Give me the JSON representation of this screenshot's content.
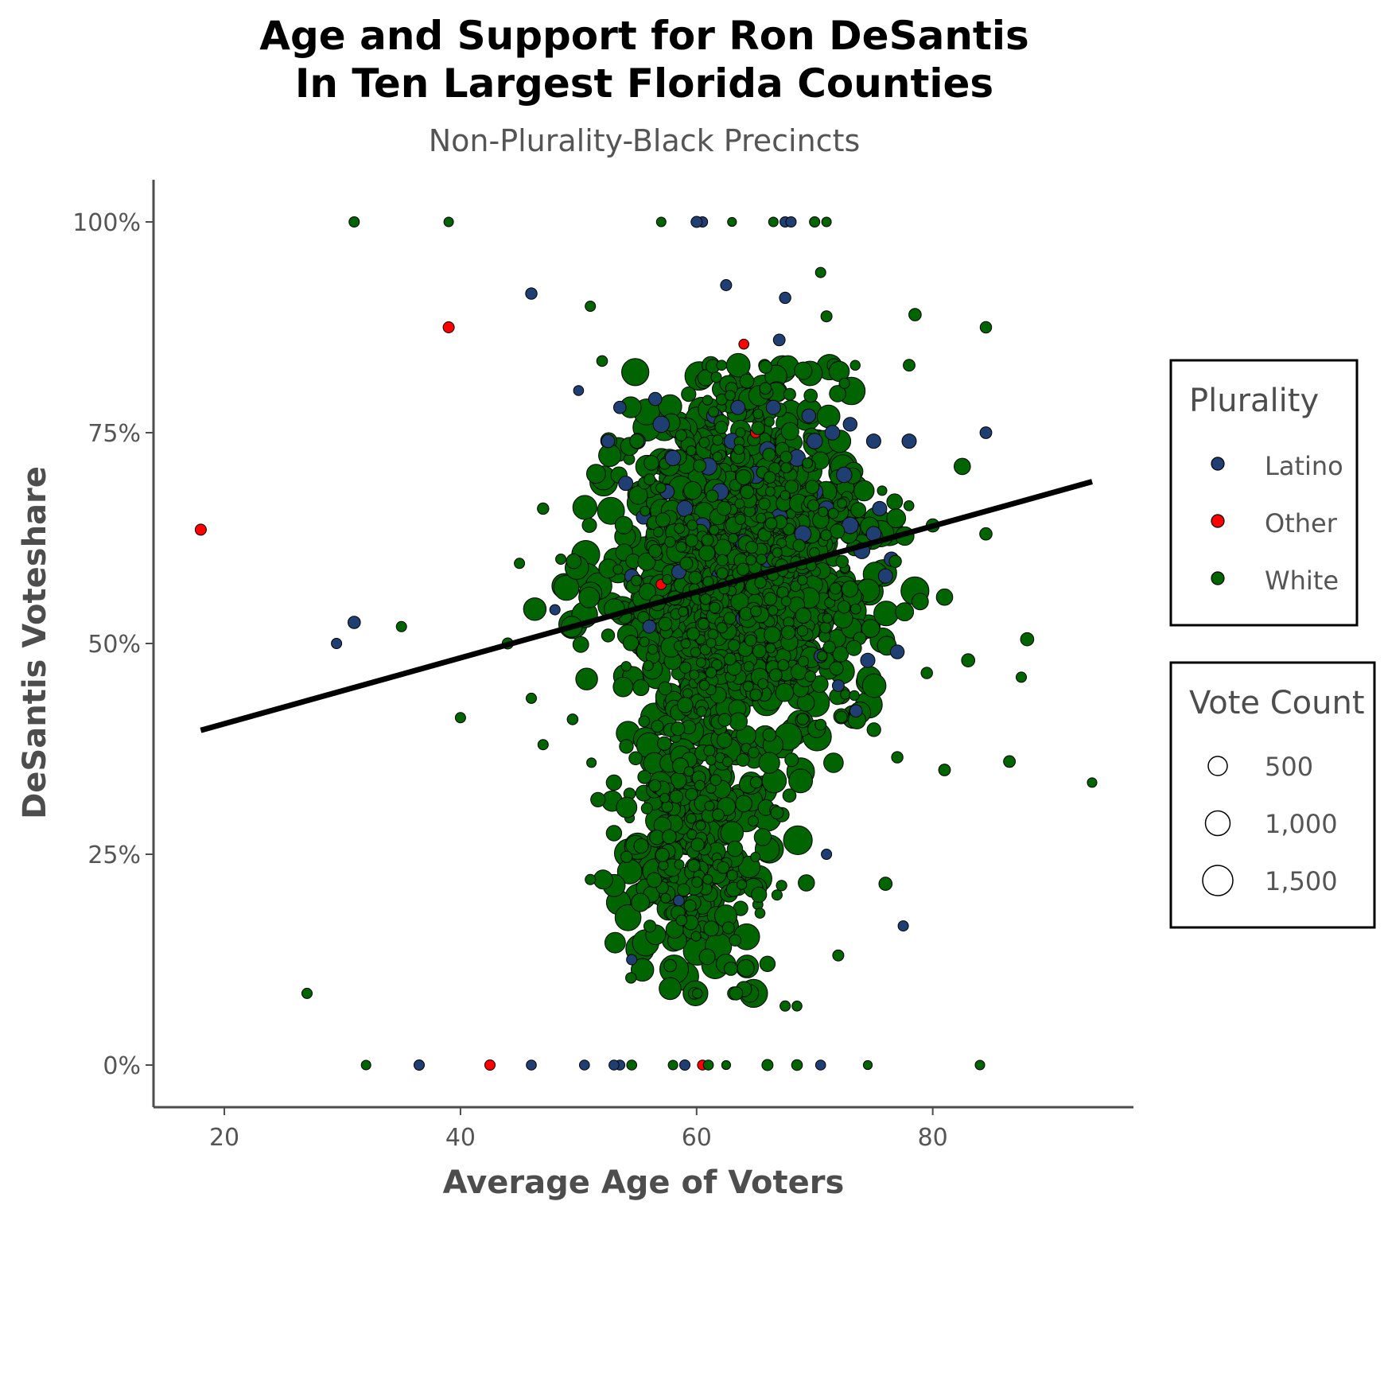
{
  "chart_data": {
    "type": "scatter",
    "title": [
      "Age and Support for Ron DeSantis",
      "In Ten Largest Florida Counties"
    ],
    "subtitle": "Non-Plurality-Black Precincts",
    "xlabel": "Average Age of Voters",
    "ylabel": "DeSantis Voteshare",
    "xlim": [
      14,
      97
    ],
    "ylim": [
      -0.05,
      1.05
    ],
    "x_ticks": [
      20,
      40,
      60,
      80
    ],
    "x_tick_labels": [
      "20",
      "40",
      "60",
      "80"
    ],
    "y_ticks": [
      0,
      0.25,
      0.5,
      0.75,
      1.0
    ],
    "y_tick_labels": [
      "0%",
      "25%",
      "50%",
      "75%",
      "100%"
    ],
    "grid": false,
    "legend_position": "right",
    "legends": {
      "color": {
        "title": "Plurality",
        "entries": [
          {
            "label": "Latino",
            "color": "#1f3f73"
          },
          {
            "label": "Other",
            "color": "#ff0000"
          },
          {
            "label": "White",
            "color": "#006400"
          }
        ]
      },
      "size": {
        "title": "Vote Count",
        "entries": [
          {
            "label": "500",
            "value": 500
          },
          {
            "label": "1,000",
            "value": 1000
          },
          {
            "label": "1,500",
            "value": 1500
          }
        ]
      }
    },
    "trend_line": {
      "x": [
        18,
        93.5
      ],
      "y": [
        0.397,
        0.692
      ]
    },
    "series": [
      {
        "name": "Latino",
        "color": "#1f3f73",
        "points": [
          [
            29.5,
            0.5,
            60
          ],
          [
            31,
            0.525,
            120
          ],
          [
            36.5,
            0.0,
            60
          ],
          [
            46,
            0.0,
            50
          ],
          [
            46,
            0.915,
            90
          ],
          [
            50,
            0.8,
            50
          ],
          [
            50.5,
            0.0,
            50
          ],
          [
            53,
            0.0,
            50
          ],
          [
            53.5,
            0.0,
            50
          ],
          [
            54,
            0.69,
            200
          ],
          [
            55,
            0.74,
            260
          ],
          [
            57,
            0.76,
            300
          ],
          [
            58,
            0.72,
            250
          ],
          [
            59,
            0.66,
            280
          ],
          [
            60,
            1.0,
            80
          ],
          [
            60.5,
            1.0,
            60
          ],
          [
            61,
            0.71,
            350
          ],
          [
            62,
            0.68,
            300
          ],
          [
            62.5,
            0.925,
            80
          ],
          [
            63,
            0.74,
            260
          ],
          [
            64,
            0.62,
            300
          ],
          [
            65,
            0.7,
            350
          ],
          [
            66,
            0.73,
            280
          ],
          [
            66,
            0.6,
            300
          ],
          [
            67,
            0.86,
            100
          ],
          [
            67.5,
            0.91,
            90
          ],
          [
            67.5,
            1.0,
            60
          ],
          [
            68,
            1.0,
            60
          ],
          [
            68.5,
            0.72,
            320
          ],
          [
            69,
            0.63,
            300
          ],
          [
            70,
            0.68,
            300
          ],
          [
            70,
            0.74,
            260
          ],
          [
            70.5,
            0.485,
            150
          ],
          [
            71,
            0.25,
            60
          ],
          [
            72,
            0.45,
            100
          ],
          [
            72.5,
            0.7,
            250
          ],
          [
            73,
            0.64,
            300
          ],
          [
            73.5,
            0.42,
            120
          ],
          [
            74,
            0.61,
            280
          ],
          [
            74.5,
            0.48,
            200
          ],
          [
            75,
            0.74,
            200
          ],
          [
            75,
            0.63,
            220
          ],
          [
            76,
            0.58,
            200
          ],
          [
            77,
            0.49,
            180
          ],
          [
            77.5,
            0.165,
            60
          ],
          [
            78,
            0.74,
            200
          ],
          [
            84.5,
            0.75,
            100
          ],
          [
            56,
            0.52,
            150
          ],
          [
            58.5,
            0.585,
            200
          ],
          [
            60,
            0.56,
            250
          ],
          [
            57.5,
            0.68,
            200
          ],
          [
            54.5,
            0.58,
            180
          ],
          [
            55.5,
            0.65,
            200
          ],
          [
            56.5,
            0.79,
            150
          ],
          [
            53.5,
            0.78,
            120
          ],
          [
            52.5,
            0.74,
            150
          ],
          [
            61.5,
            0.77,
            250
          ],
          [
            63.5,
            0.78,
            200
          ],
          [
            66.5,
            0.78,
            200
          ],
          [
            69.5,
            0.77,
            180
          ],
          [
            71.5,
            0.75,
            220
          ],
          [
            73,
            0.76,
            180
          ],
          [
            75.5,
            0.66,
            200
          ],
          [
            76.5,
            0.6,
            200
          ],
          [
            60.5,
            0.64,
            250
          ],
          [
            62,
            0.58,
            300
          ],
          [
            64.5,
            0.66,
            250
          ],
          [
            67,
            0.65,
            300
          ],
          [
            71,
            0.66,
            250
          ],
          [
            59,
            0.0,
            60
          ],
          [
            70.5,
            0.0,
            50
          ],
          [
            64,
            0.53,
            250
          ],
          [
            54.5,
            0.125,
            60
          ],
          [
            58.5,
            0.195,
            70
          ],
          [
            48,
            0.54,
            60
          ]
        ]
      },
      {
        "name": "Other",
        "color": "#ff0000",
        "points": [
          [
            18,
            0.635,
            80
          ],
          [
            39,
            0.875,
            80
          ],
          [
            42.5,
            0.0,
            60
          ],
          [
            60.5,
            0.0,
            50
          ],
          [
            64,
            0.855,
            50
          ],
          [
            65,
            0.75,
            60
          ],
          [
            64,
            0.535,
            60
          ],
          [
            57,
            0.57,
            60
          ]
        ]
      }
    ]
  }
}
